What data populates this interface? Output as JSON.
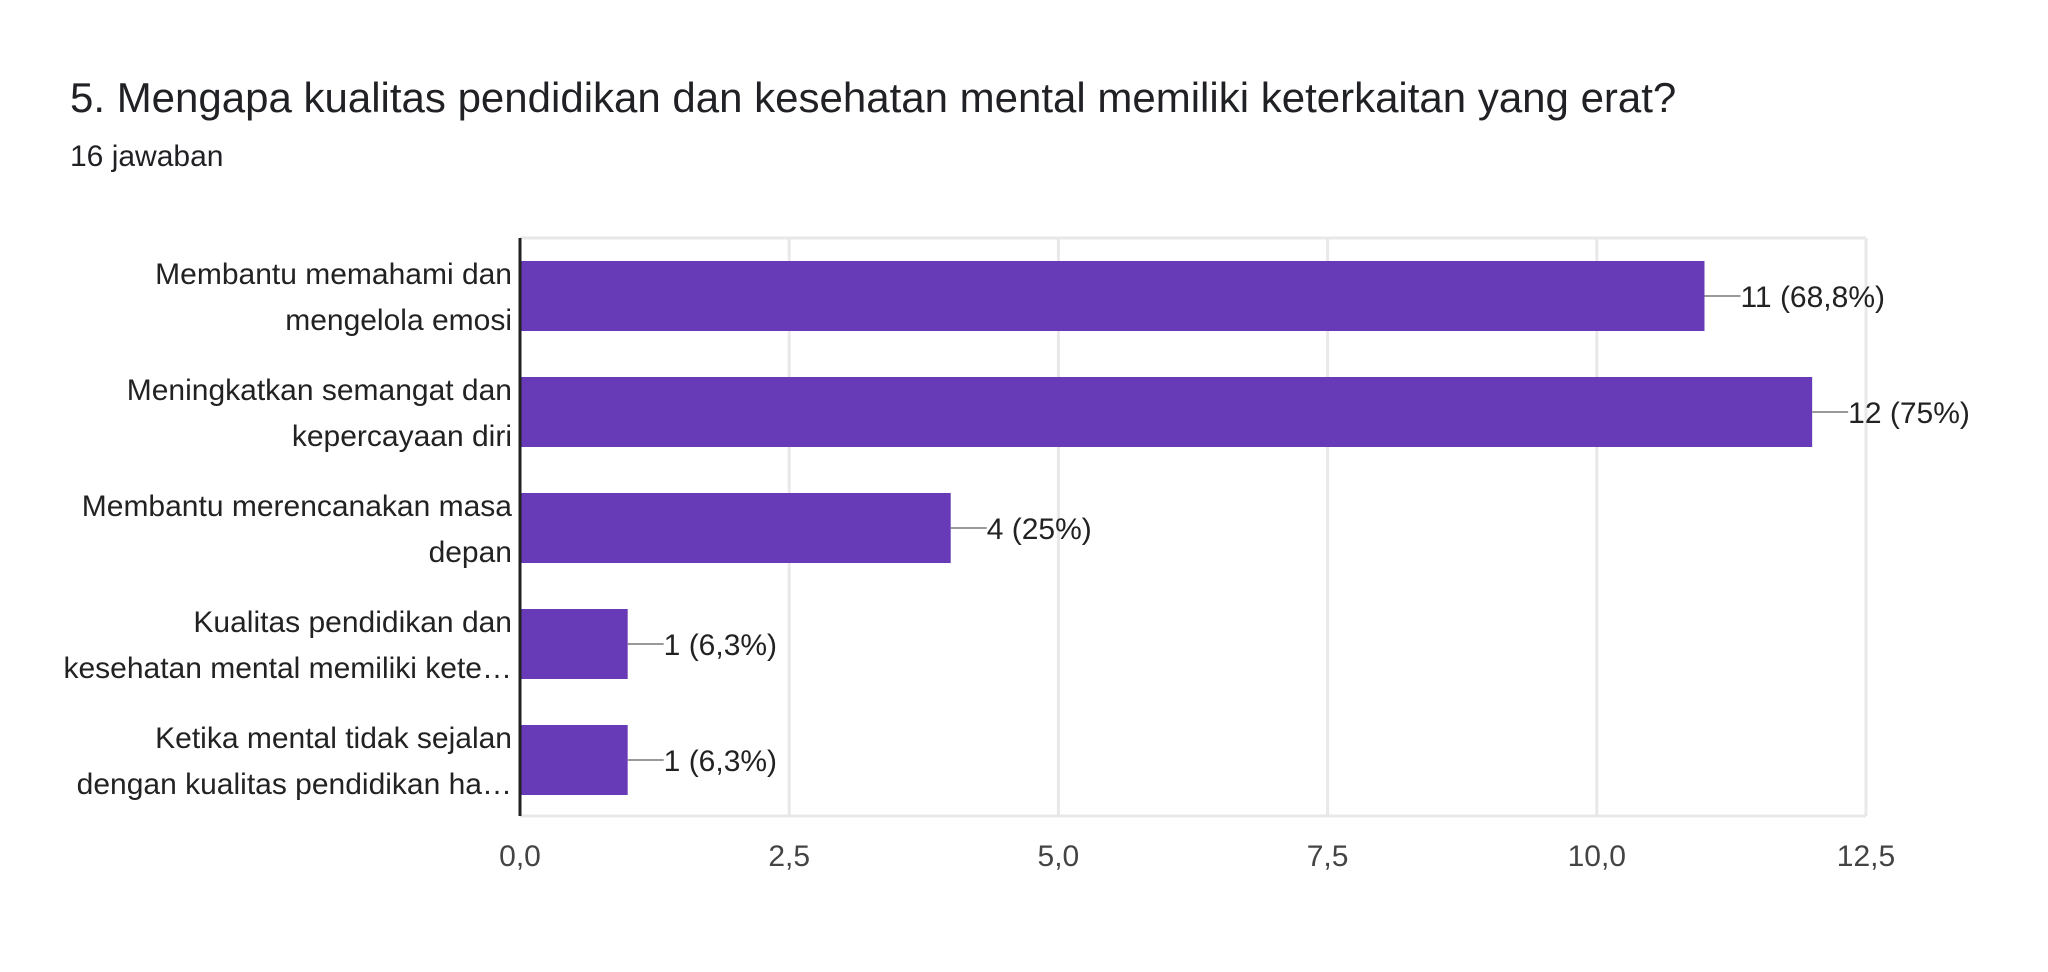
{
  "question": {
    "title": "5. Mengapa kualitas pendidikan dan kesehatan mental memiliki keterkaitan yang erat?",
    "response_count": "16 jawaban"
  },
  "colors": {
    "bar": "#673ab7",
    "grid": "#e8e8e8",
    "axis": "#222222",
    "leader": "#999999"
  },
  "chart_data": {
    "type": "bar",
    "orientation": "horizontal",
    "categories": [
      [
        "Membantu memahami dan",
        "mengelola emosi"
      ],
      [
        "Meningkatkan semangat dan",
        "kepercayaan diri"
      ],
      [
        "Membantu merencanakan masa",
        "depan"
      ],
      [
        "Kualitas pendidikan dan",
        "kesehatan mental memiliki kete…"
      ],
      [
        "Ketika mental tidak sejalan",
        "dengan kualitas pendidikan ha…"
      ]
    ],
    "values": [
      11,
      12,
      4,
      1,
      1
    ],
    "data_labels": [
      "11 (68,8%)",
      "12 (75%)",
      "4 (25%)",
      "1 (6,3%)",
      "1 (6,3%)"
    ],
    "xlim": [
      0,
      12.5
    ],
    "xticks": [
      0,
      2.5,
      5,
      7.5,
      10,
      12.5
    ],
    "xtick_labels": [
      "0,0",
      "2,5",
      "5,0",
      "7,5",
      "10,0",
      "12,5"
    ],
    "grid": true,
    "legend": "none"
  }
}
